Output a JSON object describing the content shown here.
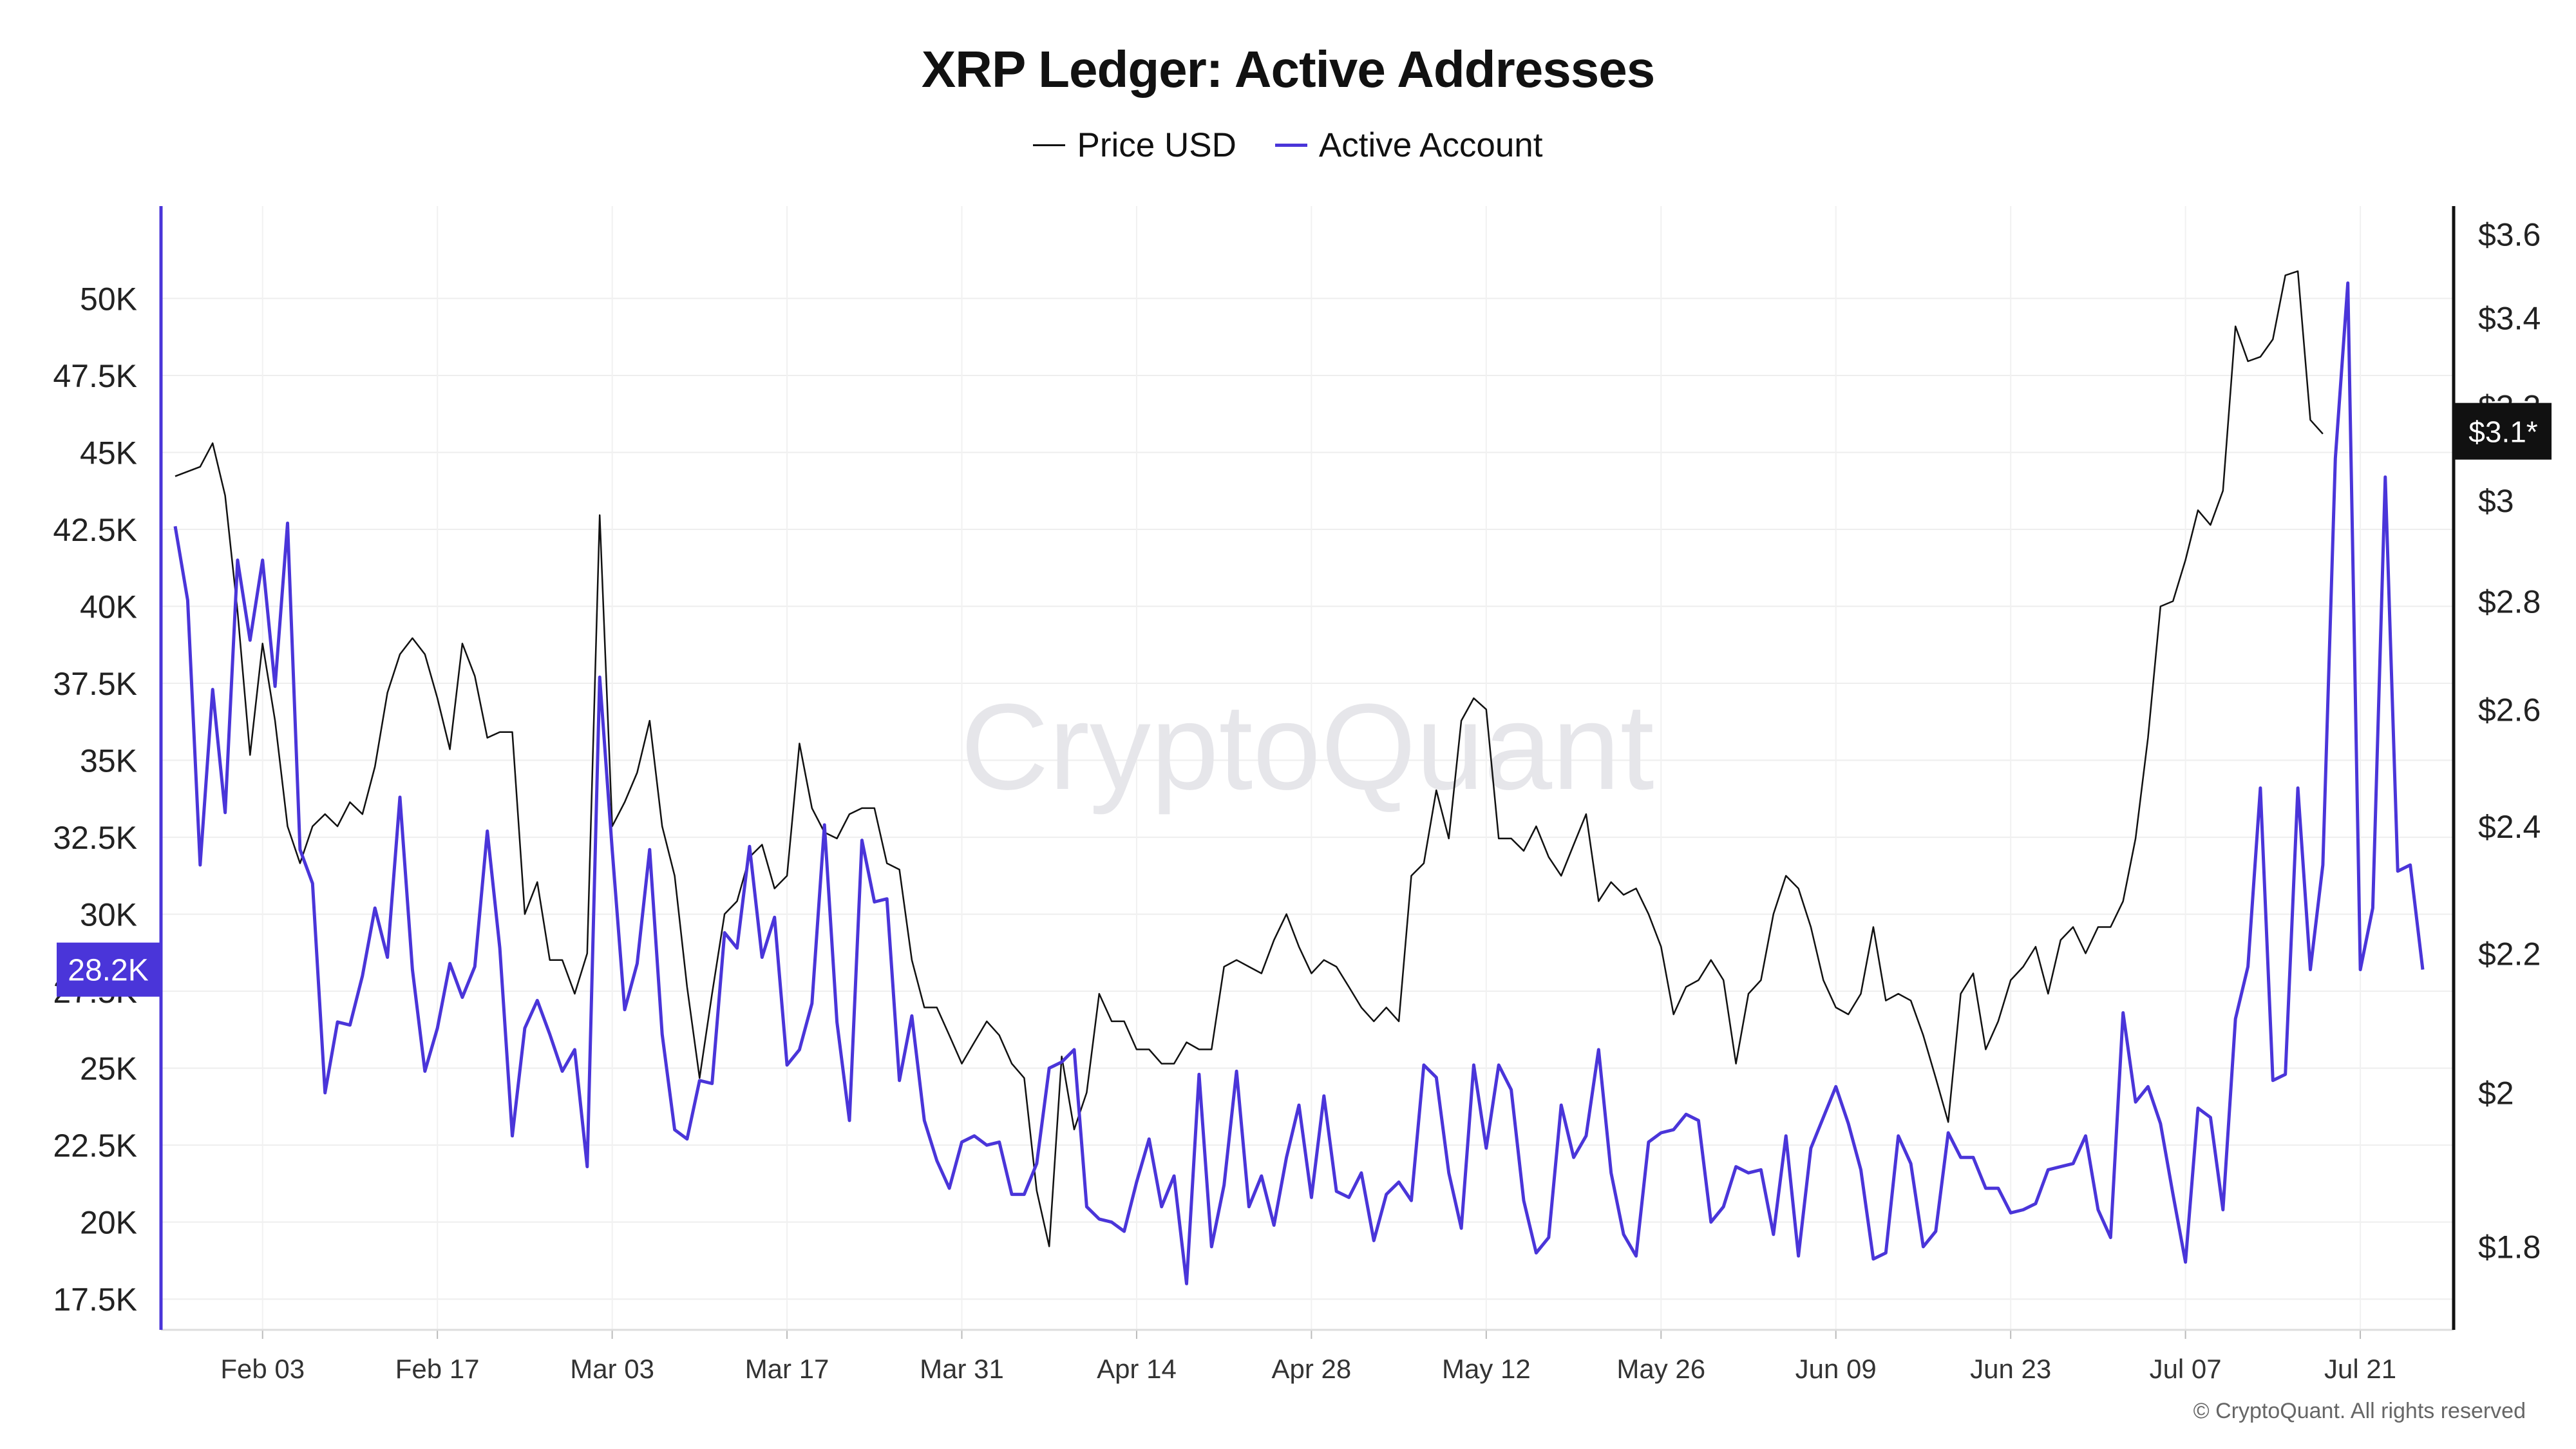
{
  "chart_data": {
    "type": "line",
    "title": "XRP Ledger: Active Addresses",
    "watermark": "CryptoQuant",
    "copyright": "© CryptoQuant. All rights reserved",
    "legend_position": "top-center",
    "grid": true,
    "x_tick_labels": [
      "Feb 03",
      "Feb 17",
      "Mar 03",
      "Mar 17",
      "Mar 31",
      "Apr 14",
      "Apr 28",
      "May 12",
      "May 26",
      "Jun 09",
      "Jun 23",
      "Jul 07",
      "Jul 21"
    ],
    "x_tick_days": [
      7,
      21,
      35,
      49,
      63,
      77,
      91,
      105,
      119,
      133,
      147,
      161,
      175
    ],
    "x_range_days": [
      0,
      180
    ],
    "left_axis": {
      "color": "#4a35d9",
      "ylim": [
        16500,
        53000
      ],
      "ticks": [
        17500,
        20000,
        22500,
        25000,
        27500,
        30000,
        32500,
        35000,
        37500,
        40000,
        42500,
        45000,
        47500,
        50000
      ],
      "tick_labels": [
        "17.5K",
        "20K",
        "22.5K",
        "25K",
        "27.5K",
        "30K",
        "32.5K",
        "35K",
        "37.5K",
        "40K",
        "42.5K",
        "45K",
        "47.5K",
        "50K"
      ],
      "current_badge": "28.2K"
    },
    "right_axis": {
      "color": "#111111",
      "scale": "log",
      "ylim": [
        1.7,
        3.67
      ],
      "ticks": [
        1.8,
        2.0,
        2.2,
        2.4,
        2.6,
        2.8,
        3.0,
        3.2,
        3.4,
        3.6
      ],
      "tick_labels": [
        "$1.8",
        "$2",
        "$2.2",
        "$2.4",
        "$2.6",
        "$2.8",
        "$3",
        "$3.2",
        "$3.4",
        "$3.6"
      ],
      "current_badge": "$3.1*"
    },
    "series": [
      {
        "name": "Price USD",
        "color": "#111111",
        "x_start_day": 0,
        "values": [
          3.05,
          3.06,
          3.07,
          3.12,
          3.01,
          2.78,
          2.52,
          2.72,
          2.58,
          2.4,
          2.34,
          2.4,
          2.42,
          2.4,
          2.44,
          2.42,
          2.5,
          2.63,
          2.7,
          2.73,
          2.7,
          2.62,
          2.53,
          2.72,
          2.66,
          2.55,
          2.56,
          2.56,
          2.26,
          2.31,
          2.19,
          2.19,
          2.14,
          2.2,
          2.97,
          2.4,
          2.44,
          2.49,
          2.58,
          2.4,
          2.32,
          2.15,
          2.02,
          2.14,
          2.26,
          2.28,
          2.35,
          2.37,
          2.3,
          2.32,
          2.54,
          2.43,
          2.39,
          2.38,
          2.42,
          2.43,
          2.43,
          2.34,
          2.33,
          2.19,
          2.12,
          2.12,
          2.08,
          2.04,
          2.07,
          2.1,
          2.08,
          2.04,
          2.02,
          1.87,
          1.8,
          2.05,
          1.95,
          2.0,
          2.14,
          2.1,
          2.1,
          2.06,
          2.06,
          2.04,
          2.04,
          2.07,
          2.06,
          2.06,
          2.18,
          2.19,
          2.18,
          2.17,
          2.22,
          2.26,
          2.21,
          2.17,
          2.19,
          2.18,
          2.15,
          2.12,
          2.1,
          2.12,
          2.1,
          2.32,
          2.34,
          2.46,
          2.38,
          2.58,
          2.62,
          2.6,
          2.38,
          2.38,
          2.36,
          2.4,
          2.35,
          2.32,
          2.37,
          2.42,
          2.28,
          2.31,
          2.29,
          2.3,
          2.26,
          2.21,
          2.11,
          2.15,
          2.16,
          2.19,
          2.16,
          2.04,
          2.14,
          2.16,
          2.26,
          2.32,
          2.3,
          2.24,
          2.16,
          2.12,
          2.11,
          2.14,
          2.24,
          2.13,
          2.14,
          2.13,
          2.08,
          2.02,
          1.96,
          2.14,
          2.17,
          2.06,
          2.1,
          2.16,
          2.18,
          2.21,
          2.14,
          2.22,
          2.24,
          2.2,
          2.24,
          2.24,
          2.28,
          2.38,
          2.55,
          2.79,
          2.8,
          2.88,
          2.98,
          2.95,
          3.02,
          3.38,
          3.3,
          3.31,
          3.35,
          3.5,
          3.51,
          3.17,
          3.14
        ]
      },
      {
        "name": "Active Account",
        "color": "#4a35d9",
        "x_start_day": 0,
        "values": [
          42600,
          40200,
          31600,
          37300,
          33300,
          41500,
          38900,
          41500,
          37400,
          42700,
          32100,
          31000,
          24200,
          26500,
          26400,
          28000,
          30200,
          28600,
          33800,
          28200,
          24900,
          26300,
          28400,
          27300,
          28300,
          32700,
          28900,
          22800,
          26300,
          27200,
          26100,
          24900,
          25600,
          21800,
          37700,
          32100,
          26900,
          28400,
          32100,
          26100,
          23000,
          22700,
          24600,
          24500,
          29400,
          28900,
          32200,
          28600,
          29900,
          25100,
          25600,
          27100,
          32900,
          26500,
          23300,
          32400,
          30400,
          30500,
          24600,
          26700,
          23300,
          22000,
          21100,
          22600,
          22800,
          22500,
          22600,
          20900,
          20900,
          21900,
          25000,
          25200,
          25600,
          20500,
          20100,
          20000,
          19700,
          21300,
          22700,
          20500,
          21500,
          18000,
          24800,
          19200,
          21200,
          24900,
          20500,
          21500,
          19900,
          22100,
          23800,
          20800,
          24100,
          21000,
          20800,
          21600,
          19400,
          20900,
          21300,
          20700,
          25100,
          24700,
          21600,
          19800,
          25100,
          22400,
          25100,
          24300,
          20700,
          19000,
          19500,
          23800,
          22100,
          22800,
          25600,
          21600,
          19600,
          18900,
          22600,
          22900,
          23000,
          23500,
          23300,
          20000,
          20500,
          21800,
          21600,
          21700,
          19600,
          22800,
          18900,
          22400,
          23400,
          24400,
          23200,
          21700,
          18800,
          19000,
          22800,
          21900,
          19200,
          19700,
          22900,
          22100,
          22100,
          21100,
          21100,
          20300,
          20400,
          20600,
          21700,
          21800,
          21900,
          22800,
          20400,
          19500,
          26800,
          23900,
          24400,
          23200,
          20900,
          18700,
          23700,
          23400,
          20400,
          26600,
          28300,
          34100,
          24600,
          24800,
          34100,
          28200,
          31600,
          44800,
          50500,
          28200,
          30200,
          44200,
          31400,
          31600,
          28200
        ]
      }
    ]
  }
}
